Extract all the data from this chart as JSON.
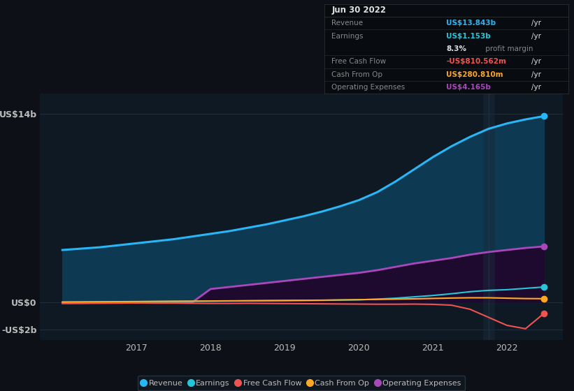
{
  "bg_color": "#0d1117",
  "chart_bg": "#0f1923",
  "grid_color": "#253545",
  "text_color": "#bbbbbb",
  "years": [
    2016.0,
    2016.25,
    2016.5,
    2016.75,
    2017.0,
    2017.25,
    2017.5,
    2017.75,
    2018.0,
    2018.25,
    2018.5,
    2018.75,
    2019.0,
    2019.25,
    2019.5,
    2019.75,
    2020.0,
    2020.25,
    2020.5,
    2020.75,
    2021.0,
    2021.25,
    2021.5,
    2021.75,
    2022.0,
    2022.25,
    2022.5
  ],
  "revenue": [
    3900000000.0,
    4000000000.0,
    4100000000.0,
    4250000000.0,
    4400000000.0,
    4550000000.0,
    4700000000.0,
    4900000000.0,
    5100000000.0,
    5300000000.0,
    5550000000.0,
    5800000000.0,
    6100000000.0,
    6400000000.0,
    6750000000.0,
    7150000000.0,
    7600000000.0,
    8200000000.0,
    9000000000.0,
    9900000000.0,
    10800000000.0,
    11600000000.0,
    12300000000.0,
    12900000000.0,
    13300000000.0,
    13600000000.0,
    13843000000.0
  ],
  "earnings": [
    20000000.0,
    30000000.0,
    40000000.0,
    50000000.0,
    60000000.0,
    70000000.0,
    80000000.0,
    90000000.0,
    100000000.0,
    110000000.0,
    120000000.0,
    130000000.0,
    140000000.0,
    150000000.0,
    160000000.0,
    180000000.0,
    200000000.0,
    250000000.0,
    320000000.0,
    420000000.0,
    520000000.0,
    650000000.0,
    800000000.0,
    900000000.0,
    950000000.0,
    1050000000.0,
    1153000000.0
  ],
  "free_cash_flow": [
    -80000000.0,
    -70000000.0,
    -60000000.0,
    -50000000.0,
    -40000000.0,
    -50000000.0,
    -50000000.0,
    -60000000.0,
    -70000000.0,
    -70000000.0,
    -60000000.0,
    -70000000.0,
    -80000000.0,
    -90000000.0,
    -100000000.0,
    -110000000.0,
    -120000000.0,
    -130000000.0,
    -130000000.0,
    -120000000.0,
    -140000000.0,
    -200000000.0,
    -500000000.0,
    -1100000000.0,
    -1700000000.0,
    -1950000000.0,
    -810600000.0
  ],
  "cash_from_op": [
    30000000.0,
    40000000.0,
    50000000.0,
    60000000.0,
    70000000.0,
    80000000.0,
    90000000.0,
    100000000.0,
    110000000.0,
    120000000.0,
    130000000.0,
    140000000.0,
    150000000.0,
    160000000.0,
    170000000.0,
    190000000.0,
    210000000.0,
    230000000.0,
    250000000.0,
    270000000.0,
    300000000.0,
    330000000.0,
    350000000.0,
    350000000.0,
    320000000.0,
    290000000.0,
    280810000.0
  ],
  "operating_expenses": [
    0.0,
    0.0,
    0.0,
    0.0,
    0.0,
    0.0,
    0.0,
    0.0,
    1000000000.0,
    1150000000.0,
    1300000000.0,
    1450000000.0,
    1600000000.0,
    1750000000.0,
    1900000000.0,
    2050000000.0,
    2200000000.0,
    2400000000.0,
    2650000000.0,
    2900000000.0,
    3100000000.0,
    3300000000.0,
    3550000000.0,
    3750000000.0,
    3900000000.0,
    4050000000.0,
    4165000000.0
  ],
  "revenue_color": "#29b6f6",
  "revenue_fill": "#0d3a52",
  "earnings_color": "#26c6da",
  "free_cash_flow_color": "#ef5350",
  "cash_from_op_color": "#ffa726",
  "operating_expenses_color": "#ab47bc",
  "operating_expenses_fill": "#1e0a2e",
  "xtick_positions": [
    2017,
    2018,
    2019,
    2020,
    2021,
    2022
  ],
  "xtick_labels": [
    "2017",
    "2018",
    "2019",
    "2020",
    "2021",
    "2022"
  ],
  "ytick_values": [
    14000000000,
    0,
    -2000000000
  ],
  "ytick_labels": [
    "US$14b",
    "US$0",
    "-US$2b"
  ],
  "ylim_min": -2800000000,
  "ylim_max": 15500000000,
  "xlim_min": 2015.7,
  "xlim_max": 2022.75,
  "vertical_line_x": 2021.75,
  "info_date": "Jun 30 2022",
  "info_revenue_label": "Revenue",
  "info_revenue_value": "US$13.843b",
  "info_earnings_label": "Earnings",
  "info_earnings_value": "US$1.153b",
  "info_margin_pct": "8.3%",
  "info_fcf_label": "Free Cash Flow",
  "info_fcf_value": "-US$810.562m",
  "info_cop_label": "Cash From Op",
  "info_cop_value": "US$280.810m",
  "info_opex_label": "Operating Expenses",
  "info_opex_value": "US$4.165b",
  "legend_items": [
    "Revenue",
    "Earnings",
    "Free Cash Flow",
    "Cash From Op",
    "Operating Expenses"
  ],
  "legend_colors": [
    "#29b6f6",
    "#26c6da",
    "#ef5350",
    "#ffa726",
    "#ab47bc"
  ]
}
